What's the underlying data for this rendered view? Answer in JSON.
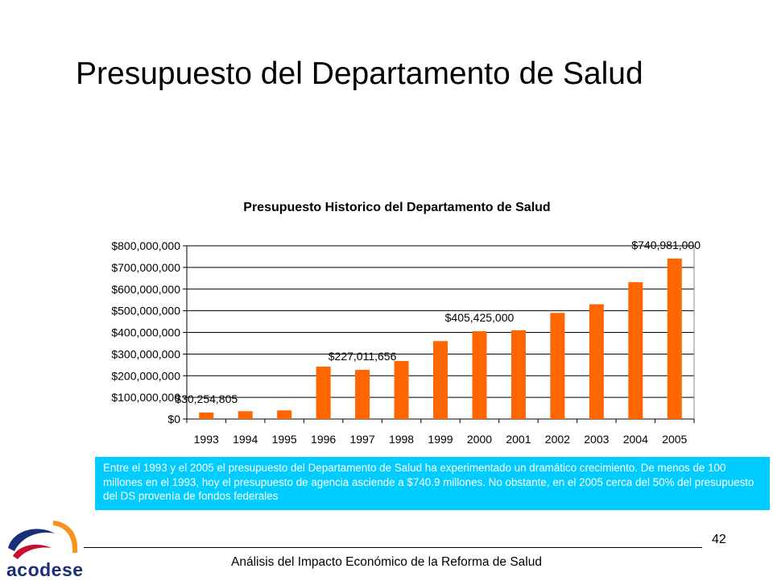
{
  "slide": {
    "title": "Presupuesto del Departamento de Salud",
    "info_text": "Entre el 1993 y el 2005 el presupuesto del Departamento de Salud ha experimentado un dramático crecimiento. De menos de 100 millones en el 1993, hoy el presupuesto de agencia asciende a $740.9 millones. No obstante, en el 2005 cerca del 50% del presupuesto del DS provenía de fondos federales",
    "page_number": "42",
    "footer": "Análisis del Impacto Económico de la Reforma de Salud",
    "logo_text": "acodese"
  },
  "colors": {
    "bar": "#ff6600",
    "info_box": "#00ccff",
    "logo_orange": "#f7941d",
    "logo_red": "#c8102e",
    "logo_blue": "#1a2f7a"
  },
  "chart_data": {
    "type": "bar",
    "title": "Presupuesto Historico del Departamento de Salud",
    "categories": [
      "1993",
      "1994",
      "1995",
      "1996",
      "1997",
      "1998",
      "1999",
      "2000",
      "2001",
      "2002",
      "2003",
      "2004",
      "2005"
    ],
    "values": [
      30254805,
      36000000,
      40000000,
      242000000,
      227011656,
      268000000,
      360000000,
      405425000,
      410000000,
      490000000,
      530000000,
      632000000,
      740981000
    ],
    "ylim": [
      0,
      800000000
    ],
    "yticks": [
      0,
      100000000,
      200000000,
      300000000,
      400000000,
      500000000,
      600000000,
      700000000,
      800000000
    ],
    "ytick_labels": [
      "$0",
      "$100,000,000",
      "$200,000,000",
      "$300,000,000",
      "$400,000,000",
      "$500,000,000",
      "$600,000,000",
      "$700,000,000",
      "$800,000,000"
    ],
    "data_labels": [
      {
        "category": "1993",
        "text": "$30,254,805"
      },
      {
        "category": "1997",
        "text": "$227,011,656"
      },
      {
        "category": "2000",
        "text": "$405,425,000"
      },
      {
        "category": "2005",
        "text": "$740,981,000"
      }
    ],
    "grid": true,
    "legend": "none"
  }
}
